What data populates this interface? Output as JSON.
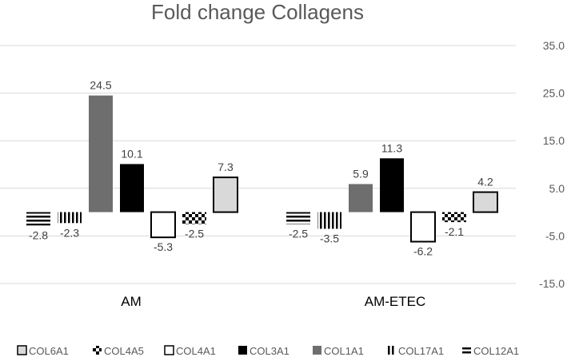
{
  "chart_data": {
    "type": "bar",
    "title": "Fold change Collagens",
    "categories": [
      "AM",
      "AM-ETEC"
    ],
    "series": [
      {
        "name": "COL12A1",
        "values": [
          -2.8,
          -2.5
        ],
        "pattern": "hlines"
      },
      {
        "name": "COL17A1",
        "values": [
          -2.3,
          -3.5
        ],
        "pattern": "vlines"
      },
      {
        "name": "COL1A1",
        "values": [
          24.5,
          5.9
        ],
        "pattern": "solid",
        "color": "#6e6e6e"
      },
      {
        "name": "COL3A1",
        "values": [
          10.1,
          11.3
        ],
        "pattern": "solid",
        "color": "#000000"
      },
      {
        "name": "COL4A1",
        "values": [
          -5.3,
          -6.2
        ],
        "pattern": "outline"
      },
      {
        "name": "COL4A5",
        "values": [
          -2.5,
          -2.1
        ],
        "pattern": "checker"
      },
      {
        "name": "COL6A1",
        "values": [
          7.3,
          4.2
        ],
        "pattern": "light",
        "color": "#d9d9d9"
      }
    ],
    "data_labels": [
      [
        "-2.8",
        "-2.3",
        "24.5",
        "10.1",
        "-5.3",
        "-2.5",
        "7.3"
      ],
      [
        "-2.5",
        "-3.5",
        "5.9",
        "11.3",
        "-6.2",
        "-2.1",
        "4.2"
      ]
    ],
    "yticks": [
      "35.0",
      "25.0",
      "15.0",
      "5.0",
      "-5.0",
      "-15.0"
    ],
    "ylim": [
      -15,
      35
    ],
    "y_axis_side": "right",
    "grid": true,
    "legend_position": "bottom",
    "legend_order": [
      "COL6A1",
      "COL4A5",
      "COL4A1",
      "COL3A1",
      "COL1A1",
      "COL17A1",
      "COL12A1"
    ]
  }
}
